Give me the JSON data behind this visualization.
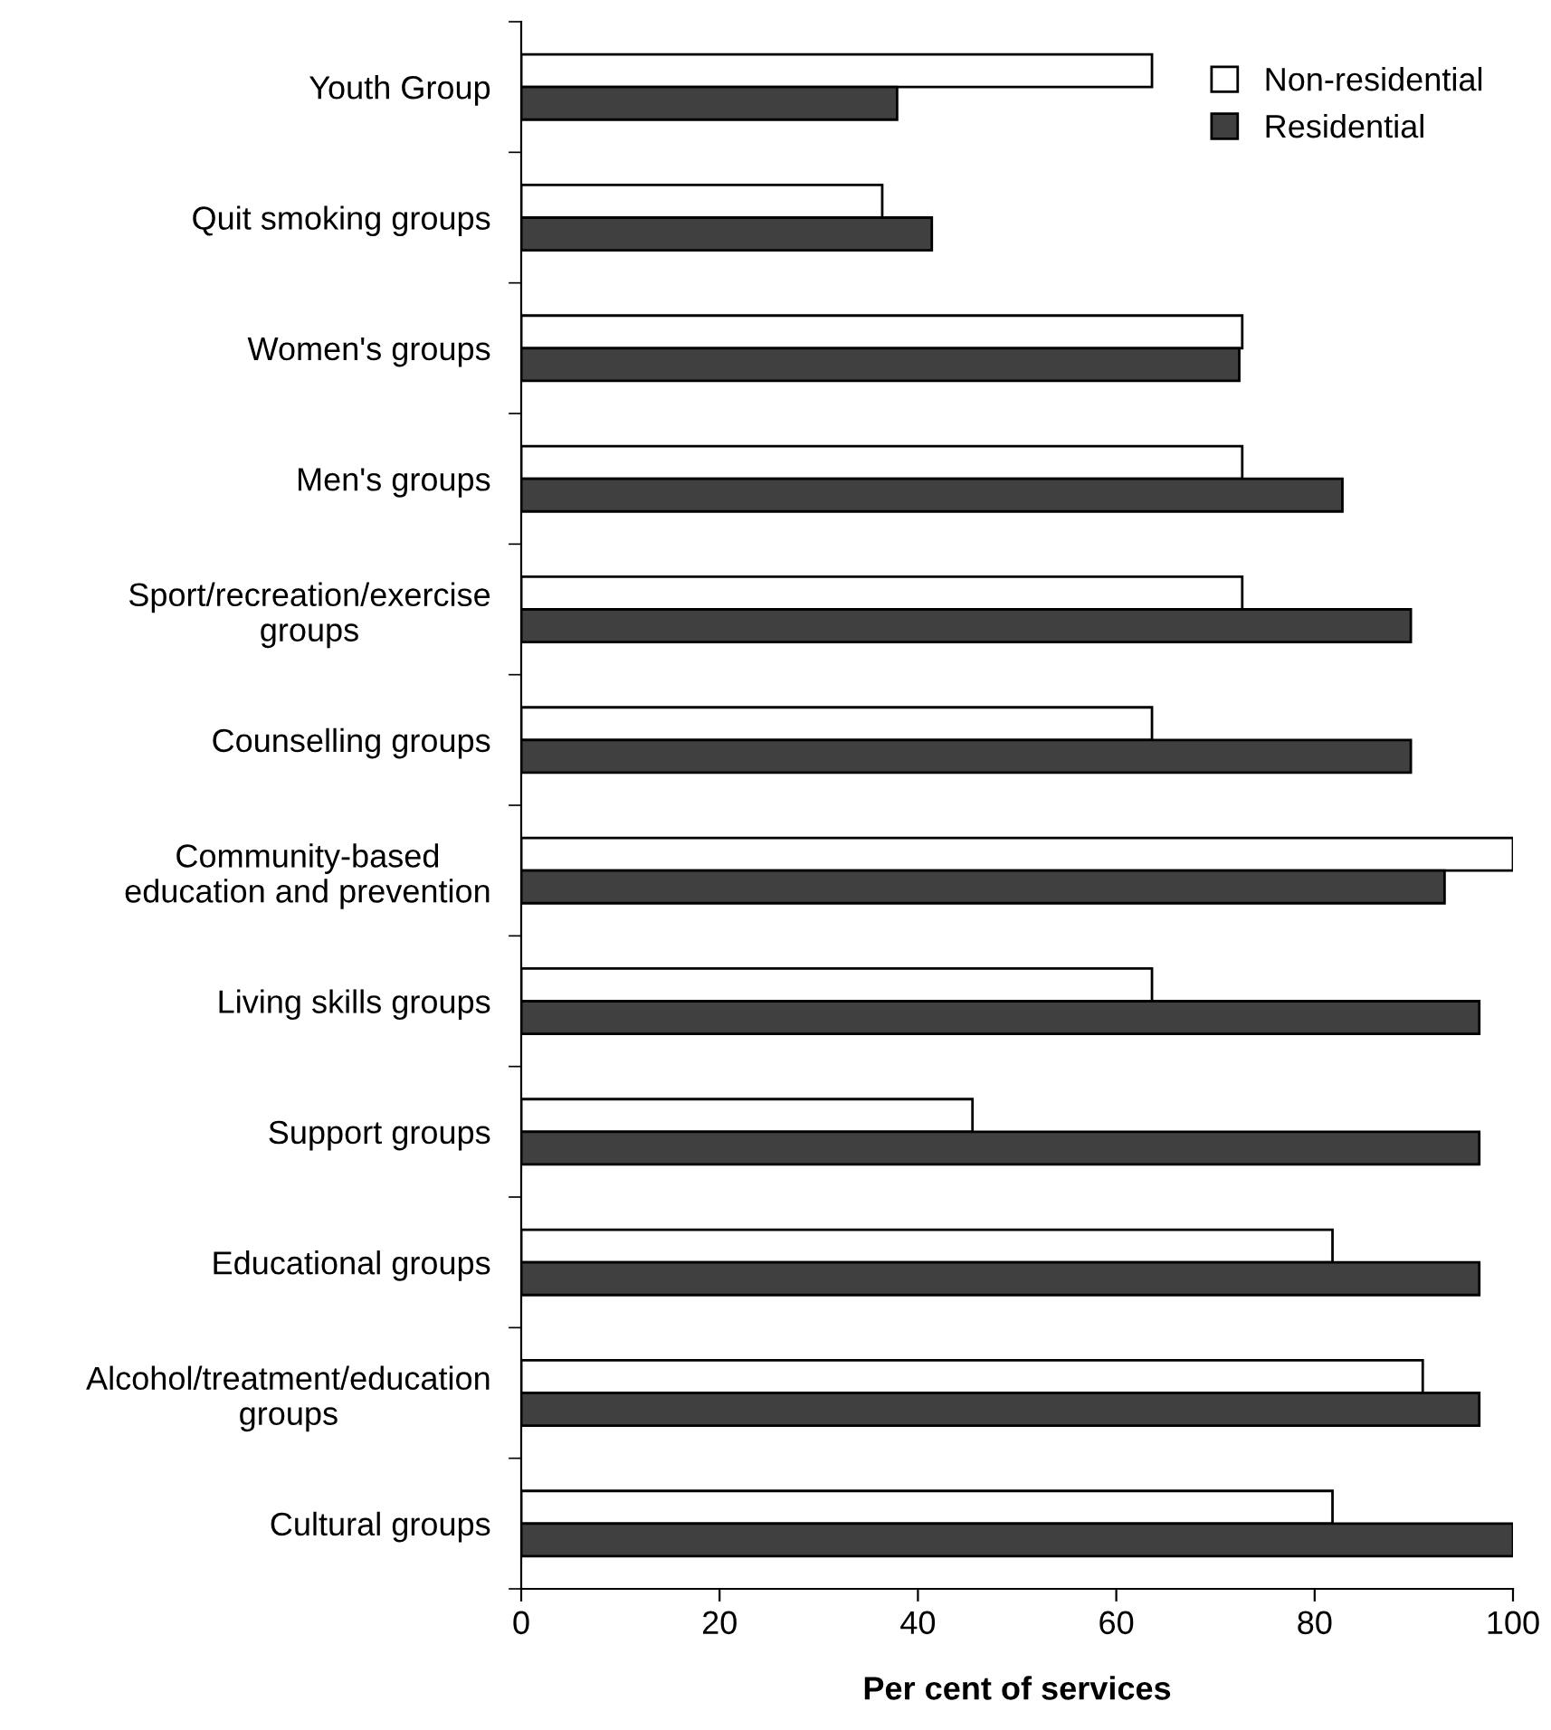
{
  "chart_data": {
    "type": "bar",
    "orientation": "horizontal",
    "xlabel": "Per cent of services",
    "categories": [
      "Youth Group",
      "Quit smoking groups",
      "Women's groups",
      "Men's groups",
      "Sport/recreation/exercise\ngroups",
      "Counselling groups",
      "Community-based\neducation and prevention",
      "Living skills groups",
      "Support groups",
      "Educational groups",
      "Alcohol/treatment/education\ngroups",
      "Cultural groups"
    ],
    "series": [
      {
        "name": "Non-residential",
        "color": "#ffffff",
        "values": [
          63.6,
          36.4,
          72.7,
          72.7,
          72.7,
          63.6,
          100,
          63.6,
          45.5,
          81.8,
          90.9,
          81.8
        ]
      },
      {
        "name": "Residential",
        "color": "#404040",
        "values": [
          37.9,
          41.4,
          72.4,
          82.8,
          89.7,
          89.7,
          93.1,
          96.6,
          96.6,
          96.6,
          96.6,
          100
        ]
      }
    ],
    "xlim": [
      0,
      100
    ],
    "xticks": [
      0,
      20,
      40,
      60,
      80,
      100
    ],
    "grid": false,
    "legend": "top right"
  }
}
